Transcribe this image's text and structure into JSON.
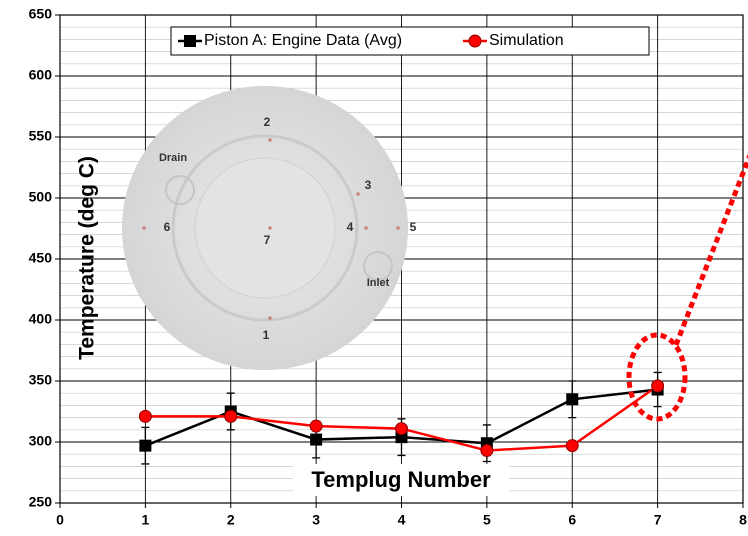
{
  "chart_data": {
    "type": "line",
    "xlabel": "Templug Number",
    "ylabel": "Temperature (deg C)",
    "x": [
      1,
      2,
      3,
      4,
      5,
      6,
      7
    ],
    "series": [
      {
        "name": "Piston A:  Engine Data (Avg)",
        "color": "#000000",
        "marker": "square",
        "values": [
          297,
          325,
          302,
          304,
          299,
          335,
          343
        ],
        "errors": [
          15,
          15,
          15,
          15,
          15,
          15,
          14
        ]
      },
      {
        "name": "Simulation",
        "color": "#ff0000",
        "marker": "circle",
        "values": [
          321,
          321,
          313,
          311,
          293,
          297,
          346
        ]
      }
    ],
    "xlim": [
      0,
      8
    ],
    "xticks": [
      0,
      1,
      2,
      3,
      4,
      5,
      6,
      7,
      8
    ],
    "ylim": [
      250,
      650
    ],
    "yticks": [
      250,
      300,
      350,
      400,
      450,
      500,
      550,
      600,
      650
    ],
    "grid": true,
    "y_minor_step": 10,
    "legend": "top",
    "image_labels": [
      "Drain",
      "Inlet",
      "1",
      "2",
      "3",
      "4",
      "5",
      "6",
      "7"
    ]
  }
}
